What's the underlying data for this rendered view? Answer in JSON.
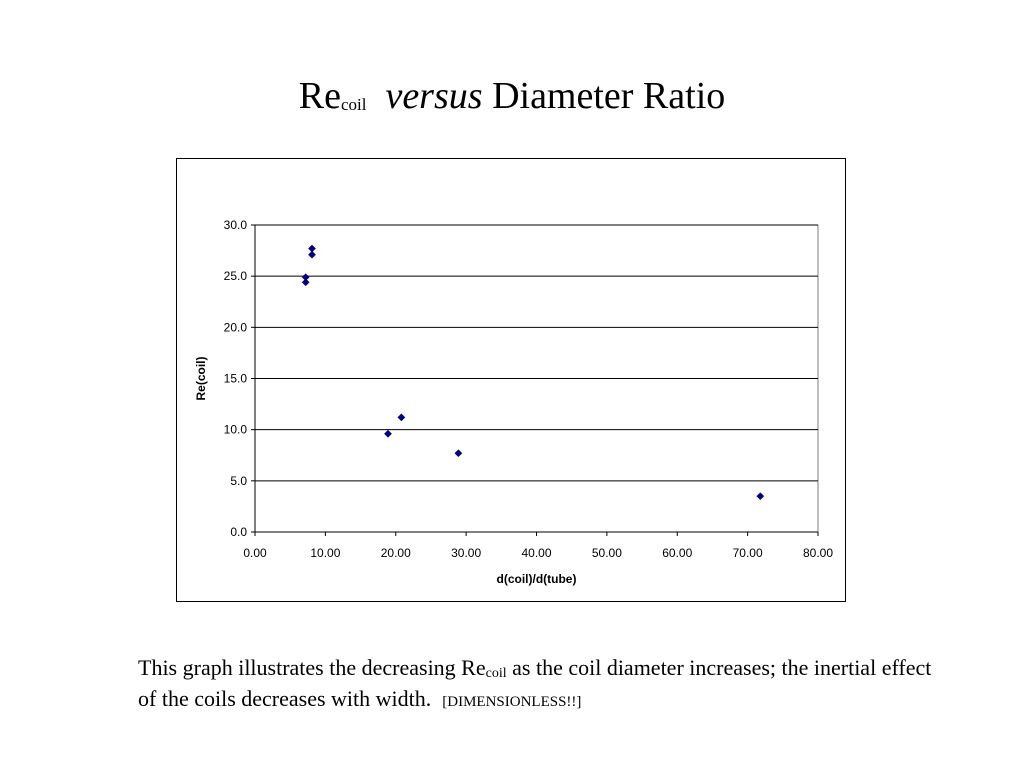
{
  "title": {
    "re": "Re",
    "sub": "coil",
    "versus": "versus",
    "rest": "Diameter Ratio"
  },
  "caption": {
    "part1": "This graph illustrates the decreasing Re",
    "sub": "coil",
    "part2": " as the coil diameter increases; the inertial effect of the coils decreases with width.",
    "note": "[DIMENSIONLESS!!]"
  },
  "chart_data": {
    "type": "scatter",
    "title": "",
    "xlabel": "d(coil)/d(tube)",
    "ylabel": "Re(coil)",
    "xlim": [
      0,
      80
    ],
    "ylim": [
      0,
      30
    ],
    "xticks": [
      "0.00",
      "10.00",
      "20.00",
      "30.00",
      "40.00",
      "50.00",
      "60.00",
      "70.00",
      "80.00"
    ],
    "yticks": [
      "0.0",
      "5.0",
      "10.0",
      "15.0",
      "20.0",
      "25.0",
      "30.0"
    ],
    "grid": "horizontal major gridlines",
    "legend": "none",
    "marker_color": "#000080",
    "series": [
      {
        "points": [
          {
            "x": 7.2,
            "y": 24.4
          },
          {
            "x": 7.2,
            "y": 24.9
          },
          {
            "x": 8.1,
            "y": 27.1
          },
          {
            "x": 8.1,
            "y": 27.7
          },
          {
            "x": 18.9,
            "y": 9.6
          },
          {
            "x": 20.8,
            "y": 11.2
          },
          {
            "x": 28.9,
            "y": 7.7
          },
          {
            "x": 71.8,
            "y": 3.5
          }
        ]
      }
    ]
  }
}
